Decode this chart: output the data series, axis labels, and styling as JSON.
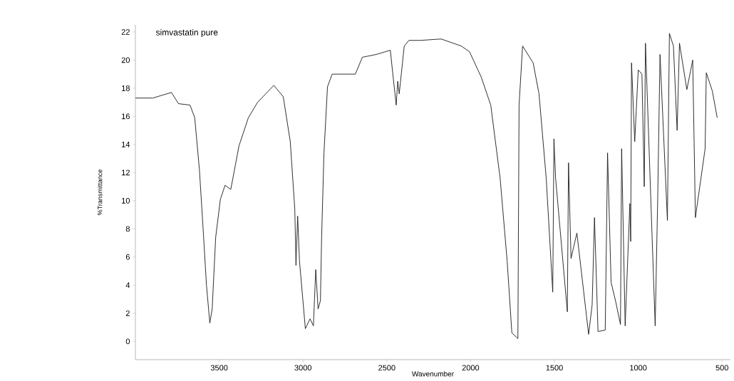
{
  "chart_data": {
    "type": "line",
    "xlabel": "Wavenumber",
    "ylabel": "%Transmittance",
    "annotations": [
      "simvastatin pure"
    ],
    "xlim": [
      4000,
      450
    ],
    "ylim": [
      -1.3,
      22.5
    ],
    "xticks": [
      3500,
      3000,
      2500,
      2000,
      1500,
      1000,
      500
    ],
    "yticks": [
      0,
      2,
      4,
      6,
      8,
      10,
      12,
      14,
      16,
      18,
      20,
      22
    ],
    "grid": false,
    "marker": "none",
    "line_style": "solid",
    "series": [
      {
        "color": "#1a1a1a",
        "x": [
          4000,
          3896,
          3785,
          3743,
          3674,
          3646,
          3618,
          3597,
          3576,
          3556,
          3542,
          3521,
          3493,
          3465,
          3431,
          3382,
          3326,
          3271,
          3174,
          3118,
          3076,
          3049,
          3042,
          3032,
          3021,
          2986,
          2958,
          2938,
          2924,
          2910,
          2896,
          2889,
          2875,
          2854,
          2826,
          2688,
          2646,
          2563,
          2479,
          2465,
          2444,
          2435,
          2426,
          2396,
          2368,
          2299,
          2176,
          2056,
          2007,
          1937,
          1880,
          1824,
          1782,
          1754,
          1718,
          1711,
          1690,
          1627,
          1592,
          1549,
          1510,
          1503,
          1493,
          1423,
          1416,
          1401,
          1366,
          1296,
          1275,
          1261,
          1240,
          1197,
          1183,
          1162,
          1134,
          1106,
          1099,
          1078,
          1050,
          1045,
          1040,
          1021,
          1000,
          978,
          964,
          957,
          899,
          884,
          870,
          826,
          814,
          790,
          768,
          754,
          710,
          675,
          659,
          601,
          594,
          558,
          529
        ],
        "values": [
          17.3,
          17.3,
          17.7,
          16.9,
          16.8,
          15.9,
          12.2,
          8.2,
          4.0,
          1.3,
          2.3,
          7.4,
          10.1,
          11.1,
          10.8,
          13.9,
          15.9,
          17.0,
          18.2,
          17.4,
          14.2,
          9.4,
          5.4,
          8.9,
          5.7,
          0.9,
          1.6,
          1.1,
          5.1,
          2.3,
          2.9,
          7.4,
          13.4,
          18.1,
          19.0,
          19.0,
          20.2,
          20.4,
          20.7,
          19.1,
          16.8,
          18.5,
          17.6,
          21.0,
          21.4,
          21.4,
          21.5,
          21.0,
          20.6,
          18.8,
          16.8,
          11.6,
          5.7,
          0.6,
          0.2,
          16.8,
          21.0,
          19.8,
          17.6,
          11.6,
          3.5,
          14.4,
          11.6,
          2.1,
          12.7,
          5.9,
          7.7,
          0.5,
          2.6,
          8.8,
          0.7,
          0.8,
          13.4,
          4.2,
          2.8,
          1.2,
          13.7,
          1.1,
          9.8,
          7.1,
          19.8,
          14.2,
          19.3,
          19.0,
          11.0,
          21.2,
          1.1,
          10.1,
          20.4,
          8.6,
          21.9,
          21.0,
          15.0,
          21.2,
          17.9,
          20.0,
          8.8,
          13.7,
          19.1,
          17.8,
          15.9
        ]
      }
    ]
  }
}
